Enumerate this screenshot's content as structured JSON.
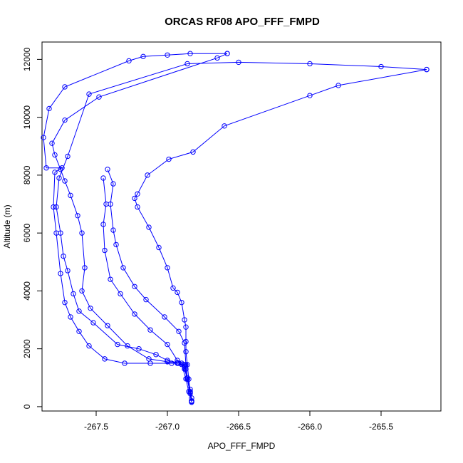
{
  "chart_data": {
    "type": "line",
    "title": "ORCAS RF08 APO_FFF_FMPD",
    "xlabel": "APO_FFF_FMPD",
    "ylabel": "Altitude (m)",
    "xlim": [
      -267.88,
      -265.08
    ],
    "ylim": [
      -150,
      12600
    ],
    "x_ticks": [
      -267.5,
      -267.0,
      -266.5,
      -266.0,
      -265.5
    ],
    "x_tick_labels": [
      "-267.5",
      "-267.0",
      "-266.5",
      "-266.0",
      "-265.5"
    ],
    "y_ticks": [
      0,
      2000,
      4000,
      6000,
      8000,
      10000,
      12000
    ],
    "y_tick_labels": [
      "0",
      "2000",
      "4000",
      "6000",
      "8000",
      "10000",
      "12000"
    ],
    "grid": false,
    "legend": "none",
    "marker": "open-circle",
    "series_color": "#0000ff",
    "series": [
      {
        "x": [
          -266.83,
          -266.84,
          -266.86,
          -266.87,
          -266.88,
          -266.9,
          -266.93,
          -266.97,
          -267.12,
          -267.3,
          -267.44,
          -267.55,
          -267.62,
          -267.68,
          -267.72,
          -267.75,
          -267.78,
          -267.8,
          -267.79,
          -267.74,
          -267.85,
          -267.87,
          -267.83,
          -267.72,
          -267.27,
          -267.17,
          -267.0,
          -266.84,
          -266.58
        ],
        "y": [
          150,
          450,
          950,
          1300,
          1450,
          1500,
          1500,
          1500,
          1500,
          1500,
          1650,
          2100,
          2600,
          3100,
          3600,
          4600,
          6000,
          6900,
          8100,
          8250,
          8250,
          9300,
          10300,
          11050,
          11950,
          12100,
          12150,
          12200,
          12200
        ]
      },
      {
        "x": [
          -266.83,
          -266.85,
          -266.87,
          -266.9,
          -266.93,
          -267.0,
          -267.08,
          -267.2,
          -267.35,
          -267.52,
          -267.62,
          -267.66,
          -267.7,
          -267.73,
          -267.75,
          -267.78,
          -267.76,
          -267.7,
          -267.55,
          -266.86,
          -266.5,
          -266.0,
          -265.5,
          -265.18
        ],
        "y": [
          200,
          520,
          960,
          1460,
          1520,
          1600,
          1800,
          2000,
          2150,
          2900,
          3300,
          3900,
          4700,
          5200,
          6000,
          6900,
          7900,
          8650,
          10800,
          11850,
          11900,
          11850,
          11750,
          11650
        ]
      },
      {
        "x": [
          -266.83,
          -266.84,
          -266.86,
          -266.88,
          -266.92,
          -267.0,
          -267.13,
          -267.28,
          -267.42,
          -267.54,
          -267.6,
          -267.58,
          -267.6,
          -267.63,
          -267.68,
          -267.72,
          -267.75,
          -267.79,
          -267.81,
          -267.72,
          -267.48,
          -266.65,
          -266.58
        ],
        "y": [
          300,
          600,
          1000,
          1400,
          1500,
          1550,
          1650,
          2100,
          2800,
          3400,
          4000,
          4800,
          6000,
          6600,
          7300,
          7800,
          8200,
          8700,
          9100,
          9900,
          10700,
          12050,
          12200
        ]
      },
      {
        "x": [
          -266.83,
          -266.84,
          -266.86,
          -266.88,
          -266.93,
          -267.0,
          -267.12,
          -267.23,
          -267.33,
          -267.4,
          -267.44,
          -267.45,
          -267.43,
          -267.45
        ],
        "y": [
          200,
          520,
          960,
          1300,
          1600,
          2150,
          2650,
          3200,
          3900,
          4400,
          5400,
          6300,
          7000,
          7900
        ]
      },
      {
        "x": [
          -266.83,
          -266.84,
          -266.86,
          -266.87,
          -266.88,
          -266.92,
          -267.02,
          -267.15,
          -267.23,
          -267.31,
          -267.36,
          -267.38,
          -267.4,
          -267.38,
          -267.42
        ],
        "y": [
          180,
          500,
          950,
          1450,
          2200,
          2600,
          3100,
          3700,
          4150,
          4800,
          5600,
          6100,
          7000,
          7700,
          8200
        ]
      },
      {
        "x": [
          -266.83,
          -266.84,
          -266.85,
          -266.86,
          -266.87,
          -266.87,
          -266.87,
          -266.88,
          -266.9,
          -266.93,
          -266.96,
          -267.0,
          -267.06,
          -267.13,
          -267.21,
          -267.23,
          -267.21,
          -267.14,
          -266.99,
          -266.82,
          -266.6,
          -266.0,
          -265.8,
          -265.18
        ],
        "y": [
          180,
          500,
          950,
          1450,
          1900,
          2250,
          2750,
          3000,
          3600,
          3950,
          4100,
          4800,
          5500,
          6200,
          6900,
          7200,
          7350,
          8000,
          8550,
          8800,
          9700,
          10750,
          11100,
          11650
        ]
      }
    ]
  }
}
